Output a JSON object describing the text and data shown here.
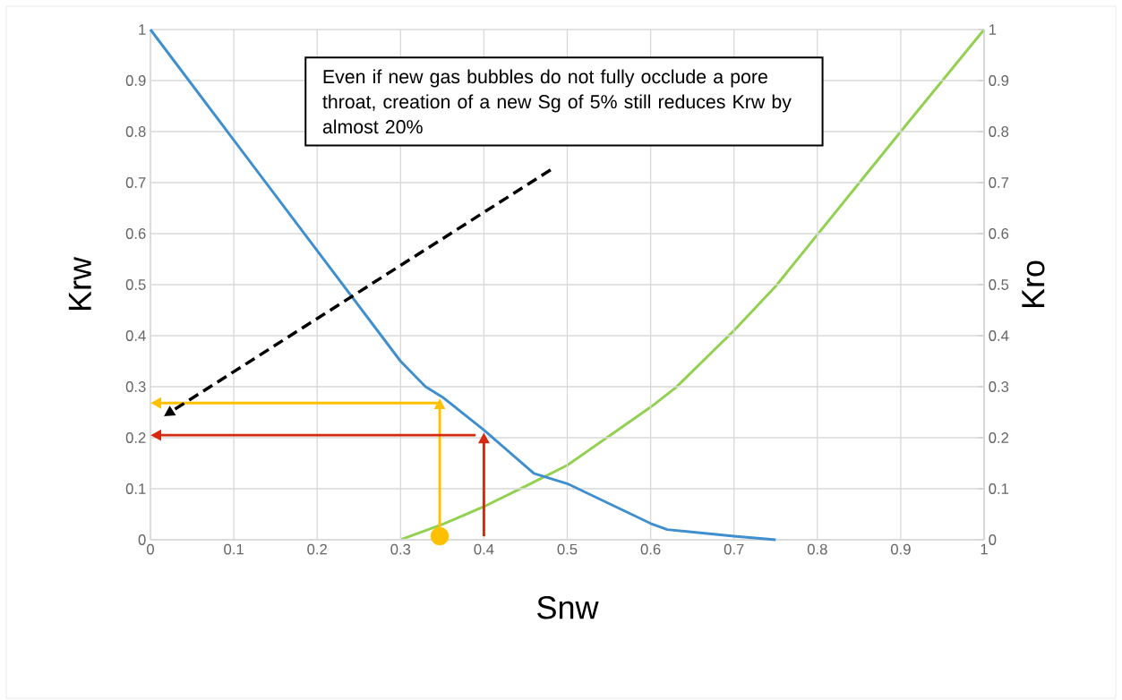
{
  "chart_data": {
    "type": "line",
    "xlabel": "Snw",
    "ylabel": "Krw",
    "y2label": "Kro",
    "xlim": [
      0,
      1
    ],
    "ylim": [
      0,
      1
    ],
    "y2lim": [
      0,
      1
    ],
    "xticks": [
      0,
      0.1,
      0.2,
      0.3,
      0.4,
      0.5,
      0.6,
      0.7,
      0.8,
      0.9,
      1
    ],
    "yticks": [
      0,
      0.1,
      0.2,
      0.3,
      0.4,
      0.5,
      0.6,
      0.7,
      0.8,
      0.9,
      1
    ],
    "y2ticks": [
      0,
      0.1,
      0.2,
      0.3,
      0.4,
      0.5,
      0.6,
      0.7,
      0.8,
      0.9,
      1
    ],
    "grid": true,
    "series": [
      {
        "color": "#3f8fce",
        "x": [
          0,
          0.3,
          0.33,
          0.35,
          0.4,
          0.46,
          0.5,
          0.6,
          0.62,
          0.7,
          0.75
        ],
        "values": [
          1,
          0.35,
          0.3,
          0.28,
          0.215,
          0.13,
          0.11,
          0.032,
          0.02,
          0.007,
          0
        ]
      },
      {
        "color": "#92d050",
        "axis": "y2",
        "x": [
          0.3,
          0.35,
          0.4,
          0.45,
          0.5,
          0.6,
          0.63,
          0.7,
          0.75,
          0.8,
          0.9,
          1
        ],
        "values": [
          0,
          0.03,
          0.065,
          0.105,
          0.146,
          0.26,
          0.298,
          0.41,
          0.497,
          0.598,
          0.8,
          1
        ]
      },
      {
        "type": "scatter",
        "color": "#ffc000",
        "x": [
          0.347
        ],
        "values": [
          0.007
        ]
      }
    ],
    "annotations": [
      "Even if new gas bubbles do not fully occlude a pore throat, creation of a new Sg of 5% still reduces Krw by almost 20%"
    ]
  }
}
